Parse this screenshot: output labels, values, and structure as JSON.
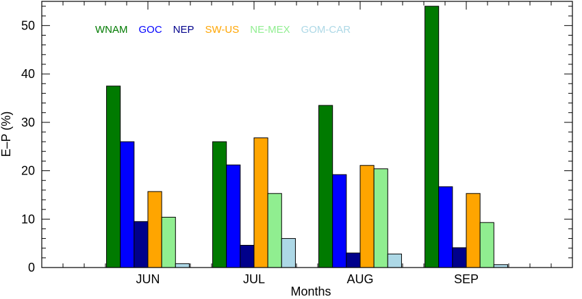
{
  "chart_data": {
    "type": "bar",
    "xlabel": "Months",
    "ylabel": "E–P (%)",
    "categories": [
      "JUN",
      "JUL",
      "AUG",
      "SEP"
    ],
    "ylim": [
      0,
      55
    ],
    "yticks": [
      0,
      10,
      20,
      30,
      40,
      50
    ],
    "grid": false,
    "legend_position": "top-left",
    "series": [
      {
        "name": "WNAM",
        "color": "#007a00",
        "values": [
          37.5,
          26.0,
          33.5,
          54.0
        ]
      },
      {
        "name": "GOC",
        "color": "#0000ff",
        "values": [
          26.0,
          21.2,
          19.2,
          16.7
        ]
      },
      {
        "name": "NEP",
        "color": "#00008b",
        "values": [
          9.5,
          4.6,
          3.0,
          4.1
        ]
      },
      {
        "name": "SW-US",
        "color": "#ffa500",
        "values": [
          15.7,
          26.8,
          21.1,
          15.3
        ]
      },
      {
        "name": "NE-MEX",
        "color": "#90ee90",
        "values": [
          10.4,
          15.3,
          20.4,
          9.3
        ]
      },
      {
        "name": "GOM-CAR",
        "color": "#add8e6",
        "values": [
          0.8,
          6.0,
          2.8,
          0.6
        ]
      }
    ]
  }
}
